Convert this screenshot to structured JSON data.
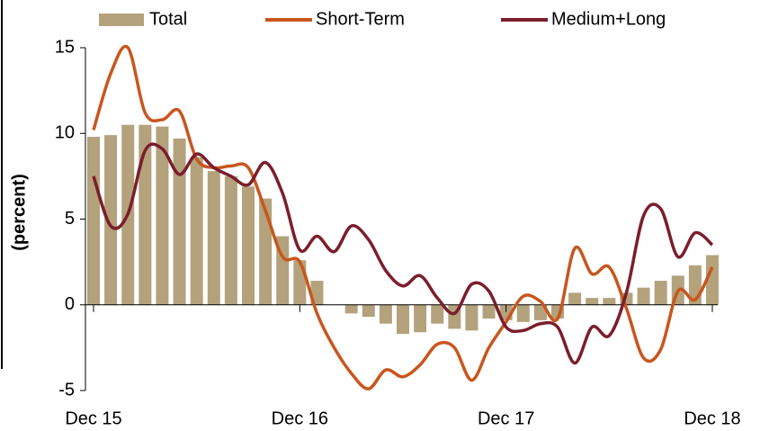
{
  "chart_data": {
    "type": "bar_line",
    "categories": [
      "Dec 15",
      null,
      null,
      null,
      null,
      null,
      null,
      null,
      null,
      null,
      null,
      null,
      "Dec 16",
      null,
      null,
      null,
      null,
      null,
      null,
      null,
      null,
      null,
      null,
      null,
      "Dec 17",
      null,
      null,
      null,
      null,
      null,
      null,
      null,
      null,
      null,
      null,
      null,
      "Dec 18"
    ],
    "y_label": "(percent)",
    "ylim": [
      -5,
      15
    ],
    "yticks": [
      -5,
      0,
      5,
      10,
      15
    ],
    "series": [
      {
        "name": "Total",
        "type": "bar",
        "color": "#b3a27c",
        "values": [
          9.8,
          9.9,
          10.5,
          10.5,
          10.4,
          9.7,
          8.6,
          7.8,
          7.5,
          6.9,
          6.2,
          4.0,
          2.6,
          1.4,
          0.0,
          -0.5,
          -0.7,
          -1.1,
          -1.7,
          -1.6,
          -1.1,
          -1.4,
          -1.5,
          -0.8,
          -0.9,
          -1.0,
          -0.9,
          -0.8,
          0.7,
          0.4,
          0.4,
          0.7,
          1.0,
          1.4,
          1.7,
          2.3,
          2.9
        ]
      },
      {
        "name": "Short-Term",
        "type": "line",
        "color": "#c8561e",
        "values": [
          10.2,
          13.5,
          15.0,
          11.2,
          10.8,
          11.3,
          8.5,
          8.0,
          8.1,
          8.0,
          5.5,
          2.8,
          2.5,
          -0.5,
          -2.5,
          -4.0,
          -4.9,
          -3.8,
          -4.2,
          -3.5,
          -2.3,
          -2.5,
          -4.4,
          -2.5,
          -1.0,
          0.5,
          0.2,
          -0.8,
          3.3,
          1.8,
          2.2,
          -0.2,
          -3.1,
          -2.6,
          0.8,
          0.3,
          2.2
        ]
      },
      {
        "name": "Medium+Long",
        "type": "line",
        "color": "#7b1e2c",
        "values": [
          7.5,
          4.6,
          5.3,
          9.0,
          9.1,
          7.6,
          8.8,
          8.0,
          7.5,
          7.0,
          8.3,
          6.5,
          3.2,
          4.0,
          3.1,
          4.6,
          3.8,
          2.0,
          1.1,
          1.7,
          0.4,
          -0.5,
          1.2,
          0.8,
          -1.3,
          -1.5,
          -1.1,
          -1.3,
          -3.4,
          -1.3,
          -1.8,
          0.7,
          5.2,
          5.6,
          2.8,
          4.2,
          3.5
        ]
      }
    ]
  }
}
